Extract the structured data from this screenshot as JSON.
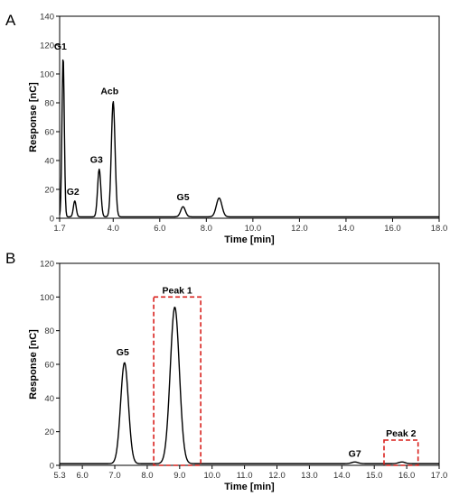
{
  "chart_data": [
    {
      "type": "line",
      "panel": "A",
      "xlabel": "Time [min]",
      "ylabel": "Response [nC]",
      "xlim": [
        1.7,
        18.0
      ],
      "ylim": [
        0,
        140
      ],
      "x_ticks": [
        "1.7",
        "4.0",
        "6.0",
        "8.0",
        "10.0",
        "12.0",
        "14.0",
        "16.0",
        "18.0"
      ],
      "x_tick_values": [
        1.7,
        4.0,
        6.0,
        8.0,
        10.0,
        12.0,
        14.0,
        16.0,
        18.0
      ],
      "y_ticks": [
        "0",
        "20",
        "40",
        "60",
        "80",
        "100",
        "120",
        "140"
      ],
      "y_tick_values": [
        0,
        20,
        40,
        60,
        80,
        100,
        120,
        140
      ],
      "baseline": 1,
      "peaks": [
        {
          "label": "G1",
          "x": 1.85,
          "y": 112,
          "sigma": 0.05
        },
        {
          "label": "G2",
          "x": 2.35,
          "y": 12,
          "sigma": 0.06
        },
        {
          "label": "G3",
          "x": 3.4,
          "y": 34,
          "sigma": 0.07
        },
        {
          "label": "Acb",
          "x": 4.0,
          "y": 81,
          "sigma": 0.08
        },
        {
          "label": "G5",
          "x": 7.0,
          "y": 8,
          "sigma": 0.1
        },
        {
          "label": "",
          "x": 8.55,
          "y": 14,
          "sigma": 0.12
        }
      ]
    },
    {
      "type": "line",
      "panel": "B",
      "xlabel": "Time [min]",
      "ylabel": "Response [nC]",
      "xlim": [
        5.3,
        17.0
      ],
      "ylim": [
        0,
        120
      ],
      "x_ticks": [
        "5.3",
        "6.0",
        "7.0",
        "8.0",
        "9.0",
        "10.0",
        "11.0",
        "12.0",
        "13.0",
        "14.0",
        "15.0",
        "16.0",
        "17.0"
      ],
      "x_tick_values": [
        5.3,
        6.0,
        7.0,
        8.0,
        9.0,
        10.0,
        11.0,
        12.0,
        13.0,
        14.0,
        15.0,
        16.0,
        17.0
      ],
      "y_ticks": [
        "0",
        "20",
        "40",
        "60",
        "80",
        "100",
        "120"
      ],
      "y_tick_values": [
        0,
        20,
        40,
        60,
        80,
        100,
        120
      ],
      "baseline": 1,
      "peaks": [
        {
          "label": "G5",
          "x": 7.3,
          "y": 61,
          "sigma": 0.12
        },
        {
          "label": "Peak 1",
          "x": 8.85,
          "y": 94,
          "sigma": 0.14
        },
        {
          "label": "G7",
          "x": 14.4,
          "y": 2,
          "sigma": 0.1
        },
        {
          "label": "",
          "x": 15.85,
          "y": 2,
          "sigma": 0.1
        }
      ],
      "highlight_boxes": [
        {
          "label": "Peak 1",
          "x0": 8.2,
          "x1": 9.65,
          "y0": 0,
          "y1": 100,
          "color": "#d9201c"
        },
        {
          "label": "Peak 2",
          "x0": 15.3,
          "x1": 16.35,
          "y0": 0,
          "y1": 15,
          "color": "#d9201c"
        }
      ]
    }
  ],
  "panel_labels": [
    "A",
    "B"
  ]
}
